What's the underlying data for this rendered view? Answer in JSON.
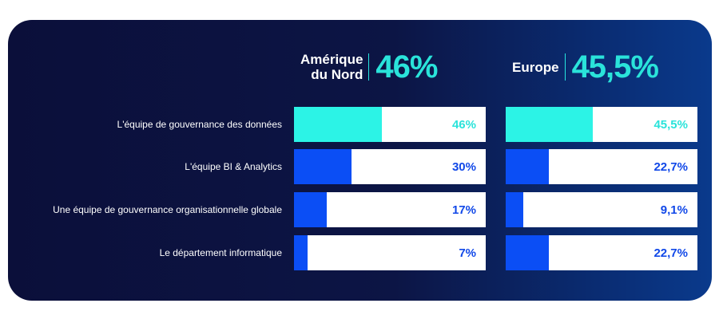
{
  "colors": {
    "card_bg": "#0b0f3a",
    "teal": "#2cf3e6",
    "blue": "#0b4ef5",
    "teal_text": "#2ae3da",
    "blue_text": "#1148e8"
  },
  "chart_data": {
    "type": "bar",
    "orientation": "horizontal",
    "categories": [
      "L'équipe de gouvernance des données",
      "L'équipe BI & Analytics",
      "Une équipe de gouvernance organisationnelle globale",
      "Le département informatique"
    ],
    "series": [
      {
        "name_lines": [
          "Amérique",
          "du Nord"
        ],
        "headline": "46%",
        "values": [
          46,
          30,
          17,
          7
        ],
        "labels": [
          "46%",
          "30%",
          "17%",
          "7%"
        ]
      },
      {
        "name_lines": [
          "Europe"
        ],
        "headline": "45,5%",
        "values": [
          45.5,
          22.7,
          9.1,
          22.7
        ],
        "labels": [
          "45,5%",
          "22,7%",
          "9,1%",
          "22,7%"
        ]
      }
    ],
    "xlim": [
      0,
      100
    ],
    "highlight_first_row": true
  }
}
